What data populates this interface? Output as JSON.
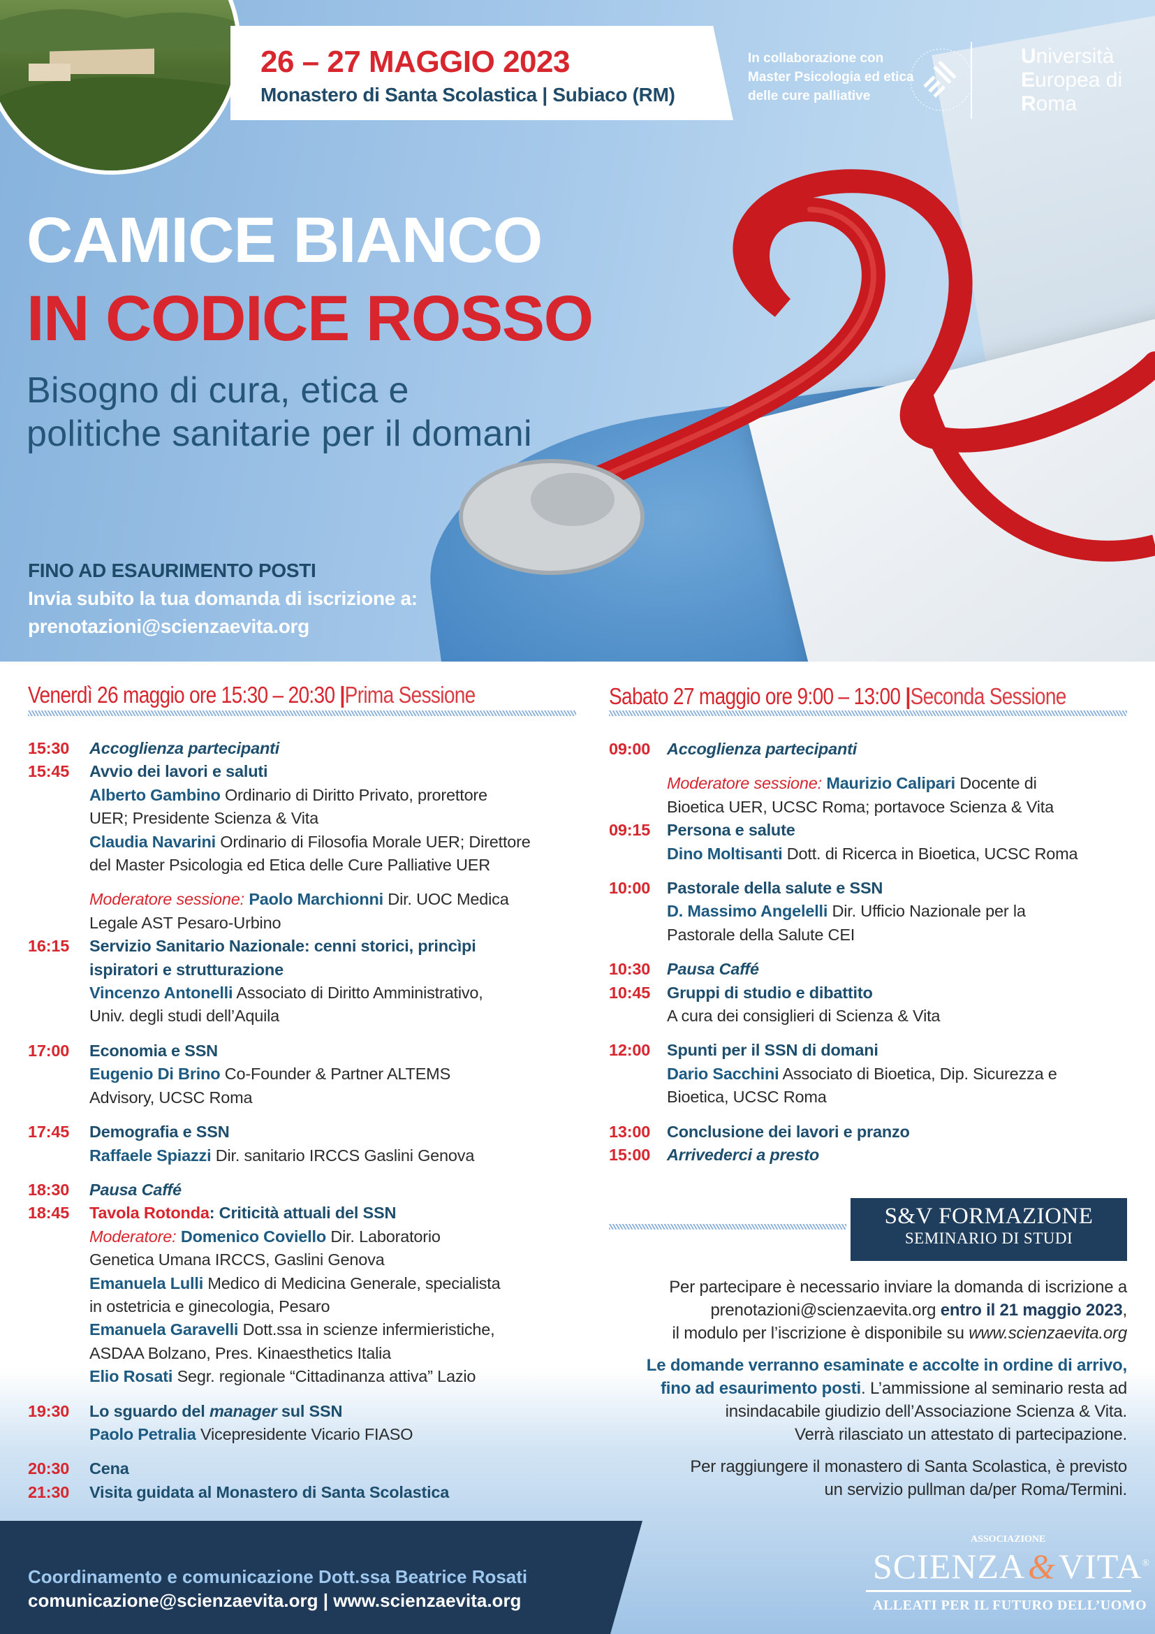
{
  "colors": {
    "red": "#d7262e",
    "navy": "#1f3a58",
    "title_blue": "#1d4e6e",
    "hero_blue": "#a5c8ea"
  },
  "header": {
    "date": "26 – 27 MAGGIO 2023",
    "place": "Monastero di Santa Scolastica | Subiaco (RM)",
    "collab": [
      "In collaborazione con",
      "Master Psicologia ed etica",
      "delle cure palliative"
    ],
    "uer": [
      {
        "cap": "U",
        "rest": "niversità"
      },
      {
        "cap": "E",
        "rest": "uropea di"
      },
      {
        "cap": "R",
        "rest": "oma"
      }
    ]
  },
  "title": {
    "line1": "CAMICE BIANCO",
    "line2": "IN CODICE ROSSO",
    "subtitle1": "Bisogno di cura, etica e",
    "subtitle2": "politiche sanitarie per il domani"
  },
  "registration": {
    "line1": "FINO AD ESAURIMENTO POSTI",
    "line2": "Invia subito la tua domanda di iscrizione a:",
    "email": "prenotazioni@scienzaevita.org"
  },
  "left": {
    "head": "Venerdì 26 maggio ore 15:30 – 20:30",
    "sep": "|",
    "session": "Prima Sessione",
    "blocks": [
      [
        {
          "time": "15:30",
          "segs": [
            [
              "it",
              "Accoglienza partecipanti"
            ]
          ]
        },
        {
          "time": "15:45",
          "segs": [
            [
              "b",
              "Avvio dei lavori e saluti"
            ]
          ]
        },
        {
          "segs": [
            [
              "n",
              "Alberto Gambino"
            ],
            [
              "r",
              " Ordinario di Diritto Privato, prorettore"
            ]
          ]
        },
        {
          "segs": [
            [
              "r",
              "UER; Presidente Scienza & Vita"
            ]
          ]
        },
        {
          "segs": [
            [
              "n",
              "Claudia Navarini"
            ],
            [
              "r",
              " Ordinario di Filosofia Morale UER; Direttore"
            ]
          ]
        },
        {
          "segs": [
            [
              "r",
              "del Master Psicologia ed Etica delle Cure Palliative UER"
            ]
          ]
        }
      ],
      [
        {
          "segs": [
            [
              "m",
              "Moderatore sessione: "
            ],
            [
              "n",
              "Paolo Marchionni"
            ],
            [
              "r",
              " Dir. UOC Medica"
            ]
          ]
        },
        {
          "segs": [
            [
              "r",
              "Legale AST Pesaro-Urbino"
            ]
          ]
        },
        {
          "time": "16:15",
          "segs": [
            [
              "b",
              "Servizio Sanitario Nazionale: cenni storici, princìpi"
            ]
          ]
        },
        {
          "segs": [
            [
              "b",
              "ispiratori e strutturazione"
            ]
          ]
        },
        {
          "segs": [
            [
              "n",
              "Vincenzo Antonelli"
            ],
            [
              "r",
              " Associato di Diritto Amministrativo,"
            ]
          ]
        },
        {
          "segs": [
            [
              "r",
              "Univ. degli studi dell’Aquila"
            ]
          ]
        }
      ],
      [
        {
          "time": "17:00",
          "segs": [
            [
              "b",
              "Economia e SSN"
            ]
          ]
        },
        {
          "segs": [
            [
              "n",
              "Eugenio Di Brino"
            ],
            [
              "r",
              " Co-Founder & Partner ALTEMS"
            ]
          ]
        },
        {
          "segs": [
            [
              "r",
              "Advisory, UCSC Roma"
            ]
          ]
        }
      ],
      [
        {
          "time": "17:45",
          "segs": [
            [
              "b",
              "Demografia e SSN"
            ]
          ]
        },
        {
          "segs": [
            [
              "n",
              "Raffaele Spiazzi"
            ],
            [
              "r",
              " Dir. sanitario IRCCS Gaslini Genova"
            ]
          ]
        }
      ],
      [
        {
          "time": "18:30",
          "segs": [
            [
              "it",
              "Pausa Caffé"
            ]
          ]
        },
        {
          "time": "18:45",
          "segs": [
            [
              "tr",
              "Tavola Rotonda"
            ],
            [
              "b",
              ": Criticità attuali del SSN"
            ]
          ]
        },
        {
          "segs": [
            [
              "m",
              "Moderatore: "
            ],
            [
              "n",
              "Domenico Coviello"
            ],
            [
              "r",
              " Dir. Laboratorio"
            ]
          ]
        },
        {
          "segs": [
            [
              "r",
              "Genetica Umana IRCCS, Gaslini Genova"
            ]
          ]
        },
        {
          "segs": [
            [
              "n",
              "Emanuela Lulli"
            ],
            [
              "r",
              " Medico di Medicina Generale, specialista"
            ]
          ]
        },
        {
          "segs": [
            [
              "r",
              "in ostetricia e ginecologia, Pesaro"
            ]
          ]
        },
        {
          "segs": [
            [
              "n",
              "Emanuela Garavelli"
            ],
            [
              "r",
              " Dott.ssa in scienze infermieristiche,"
            ]
          ]
        },
        {
          "segs": [
            [
              "r",
              "ASDAA Bolzano, Pres. Kinaesthetics Italia"
            ]
          ]
        },
        {
          "segs": [
            [
              "n",
              "Elio Rosati"
            ],
            [
              "r",
              " Segr. regionale “Cittadinanza attiva” Lazio"
            ]
          ]
        }
      ],
      [
        {
          "time": "19:30",
          "segs": [
            [
              "b",
              "Lo sguardo del "
            ],
            [
              "bi",
              "manager"
            ],
            [
              "b",
              " sul SSN"
            ]
          ]
        },
        {
          "segs": [
            [
              "n",
              "Paolo Petralia"
            ],
            [
              "r",
              " Vicepresidente Vicario FIASO"
            ]
          ]
        }
      ],
      [
        {
          "time": "20:30",
          "segs": [
            [
              "b",
              "Cena"
            ]
          ]
        },
        {
          "time": "21:30",
          "segs": [
            [
              "b",
              "Visita guidata al Monastero di Santa Scolastica"
            ]
          ]
        }
      ]
    ]
  },
  "right": {
    "head": "Sabato 27 maggio ore 9:00 – 13:00",
    "sep": "|",
    "session": "Seconda Sessione",
    "blocks": [
      [
        {
          "time": "09:00",
          "segs": [
            [
              "it",
              "Accoglienza partecipanti"
            ]
          ]
        }
      ],
      [
        {
          "segs": [
            [
              "m",
              "Moderatore sessione: "
            ],
            [
              "n",
              "Maurizio Calipari"
            ],
            [
              "r",
              " Docente di"
            ]
          ]
        },
        {
          "segs": [
            [
              "r",
              "Bioetica UER, UCSC Roma; portavoce Scienza & Vita"
            ]
          ]
        },
        {
          "time": "09:15",
          "segs": [
            [
              "b",
              "Persona e salute"
            ]
          ]
        },
        {
          "segs": [
            [
              "n",
              "Dino Moltisanti"
            ],
            [
              "r",
              " Dott. di Ricerca in Bioetica, UCSC Roma"
            ]
          ]
        }
      ],
      [
        {
          "time": "10:00",
          "segs": [
            [
              "b",
              "Pastorale della salute e SSN"
            ]
          ]
        },
        {
          "segs": [
            [
              "n",
              "D. Massimo Angelelli"
            ],
            [
              "r",
              " Dir. Ufficio Nazionale per la"
            ]
          ]
        },
        {
          "segs": [
            [
              "r",
              "Pastorale della Salute CEI"
            ]
          ]
        }
      ],
      [
        {
          "time": "10:30",
          "segs": [
            [
              "it",
              "Pausa Caffé"
            ]
          ]
        },
        {
          "time": "10:45",
          "segs": [
            [
              "b",
              "Gruppi di studio e dibattito"
            ]
          ]
        },
        {
          "segs": [
            [
              "r",
              "A cura dei consiglieri di Scienza & Vita"
            ]
          ]
        }
      ],
      [
        {
          "time": "12:00",
          "segs": [
            [
              "b",
              "Spunti per il SSN di domani"
            ]
          ]
        },
        {
          "segs": [
            [
              "n",
              "Dario Sacchini"
            ],
            [
              "r",
              " Associato di Bioetica, Dip. Sicurezza e"
            ]
          ]
        },
        {
          "segs": [
            [
              "r",
              "Bioetica, UCSC Roma"
            ]
          ]
        }
      ],
      [
        {
          "time": "13:00",
          "segs": [
            [
              "b",
              "Conclusione dei lavori e pranzo"
            ]
          ]
        },
        {
          "time": "15:00",
          "segs": [
            [
              "it",
              "Arrivederci a presto"
            ]
          ]
        }
      ]
    ]
  },
  "sv_box": {
    "line1": "S&V FORMAZIONE",
    "line2": "SEMINARIO DI STUDI"
  },
  "info": [
    [
      [
        [
          "r",
          "Per partecipare è necessario inviare la domanda di iscrizione a"
        ]
      ],
      [
        [
          "r",
          "prenotazioni@scienzaevita.org "
        ],
        [
          "bd",
          "entro il 21 maggio 2023"
        ],
        [
          "r",
          ","
        ]
      ],
      [
        [
          "r",
          "il modulo per l’iscrizione è disponibile su "
        ],
        [
          "i",
          "www.scienzaevita.org"
        ]
      ]
    ],
    [
      [
        [
          "bb",
          "Le domande verranno esaminate e accolte in ordine di arrivo,"
        ]
      ],
      [
        [
          "bb",
          "fino ad esaurimento posti"
        ],
        [
          "r",
          ". L’ammissione al seminario resta ad"
        ]
      ],
      [
        [
          "r",
          "insindacabile giudizio dell’Associazione Scienza & Vita."
        ]
      ],
      [
        [
          "r",
          "Verrà rilasciato un attestato di partecipazione."
        ]
      ]
    ],
    [
      [
        [
          "r",
          "Per raggiungere il monastero di Santa Scolastica, è previsto"
        ]
      ],
      [
        [
          "r",
          "un servizio pullman da/per Roma/Termini."
        ]
      ]
    ]
  ],
  "footer": {
    "coord": "Coordinamento e comunicazione Dott.ssa Beatrice Rosati",
    "contacts": "comunicazione@scienzaevita.org | www.scienzaevita.org"
  },
  "sv_logo": {
    "assoc": "ASSOCIAZIONE",
    "name_left": "SCIENZA",
    "amp": "&",
    "name_right": "VITA",
    "reg": "®",
    "tagline": "ALLEATI PER IL FUTURO DELL’UOMO"
  }
}
